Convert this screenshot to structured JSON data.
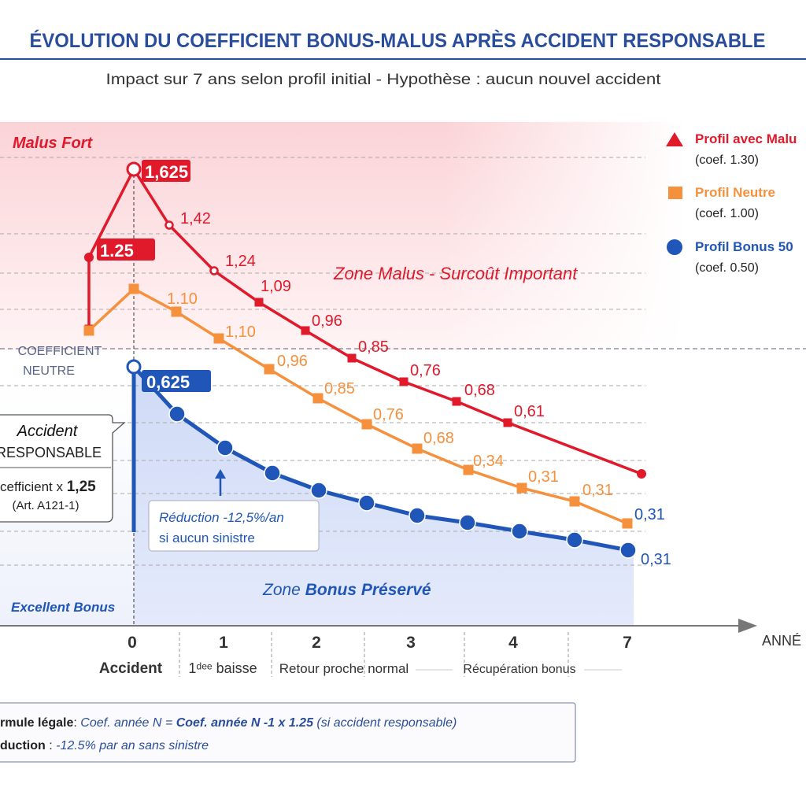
{
  "title": "ÉVOLUTION DU COEFFICIENT BONUS-MALUS APRÈS ACCIDENT RESPONSABLE",
  "subtitle": "Impact sur 7 ans selon profil initial - Hypothèse : aucun nouvel accident",
  "colors": {
    "red": "#e0192b",
    "orange": "#f5903d",
    "blue": "#1f56b8",
    "title": "#2a4d9b"
  },
  "zones": {
    "malus_fort": "Malus Fort",
    "coef_neutre_1": "COEFFICIENT",
    "coef_neutre_2": "NEUTRE",
    "zone_malus": "Zone Malus - Surcoût Important",
    "zone_bonus_prefix": "Zone ",
    "zone_bonus_bold": "Bonus Préservé",
    "excellent_bonus": "Excellent Bonus"
  },
  "callout_accident": {
    "line1": "Accident",
    "line2": "RESPONSABLE",
    "line3_prefix": "cefficient x ",
    "line3_value": "1,25",
    "line4": "(Art. A121-1)"
  },
  "callout_reduction": {
    "line1": "Réduction -12,5%/an",
    "line2": "si aucun sinistre"
  },
  "legend": [
    {
      "label": "Profil avec Malu",
      "sub": "(coef. 1.30)",
      "marker": "triangle",
      "color": "#e0192b"
    },
    {
      "label": "Profil Neutre",
      "sub": "(coef. 1.00)",
      "marker": "square",
      "color": "#f5903d"
    },
    {
      "label": "Profil Bonus 50",
      "sub": "(coef. 0.50)",
      "marker": "circle",
      "color": "#1f56b8"
    }
  ],
  "formula": {
    "label1": "rmule légale",
    "sep1": ": ",
    "text1a": "Coef. année N = ",
    "text1b": "Coef. année N -1 x 1.25",
    "text1c": " (si accident responsable)",
    "label2": "duction",
    "sep2": " : ",
    "text2": "-12.5% par an sans sinistre"
  },
  "chart_data": {
    "type": "line",
    "xlabel": "ANNÉ",
    "x_ticks": [
      "0",
      "1",
      "2",
      "3",
      "4",
      "7"
    ],
    "x_sublabels": [
      "Accident",
      "1ᵈᵉᵉ baisse",
      "Retour proche normal",
      "Récupération bonus"
    ],
    "grid": true,
    "legend_position": "top-right",
    "series": [
      {
        "name": "Profil avec Malu",
        "color": "#e0192b",
        "labels": [
          null,
          "1.25",
          "1,625",
          "1,42",
          "1,24",
          "1,09",
          "0,96",
          "0,85",
          "0,76",
          "0,68",
          "0,61",
          null
        ]
      },
      {
        "name": "Profil Neutre",
        "color": "#f5903d",
        "labels": [
          null,
          null,
          "1.10",
          "1,10",
          "0,96",
          "0,85",
          "0,76",
          "0,68",
          "0,34",
          "0,31",
          "0,31",
          null
        ]
      },
      {
        "name": "Profil Bonus 50",
        "color": "#1f56b8",
        "labels": [
          "0,625",
          null,
          null,
          null,
          null,
          null,
          null,
          null,
          null,
          null,
          "0,31"
        ]
      }
    ],
    "extra_label": "0,31"
  }
}
